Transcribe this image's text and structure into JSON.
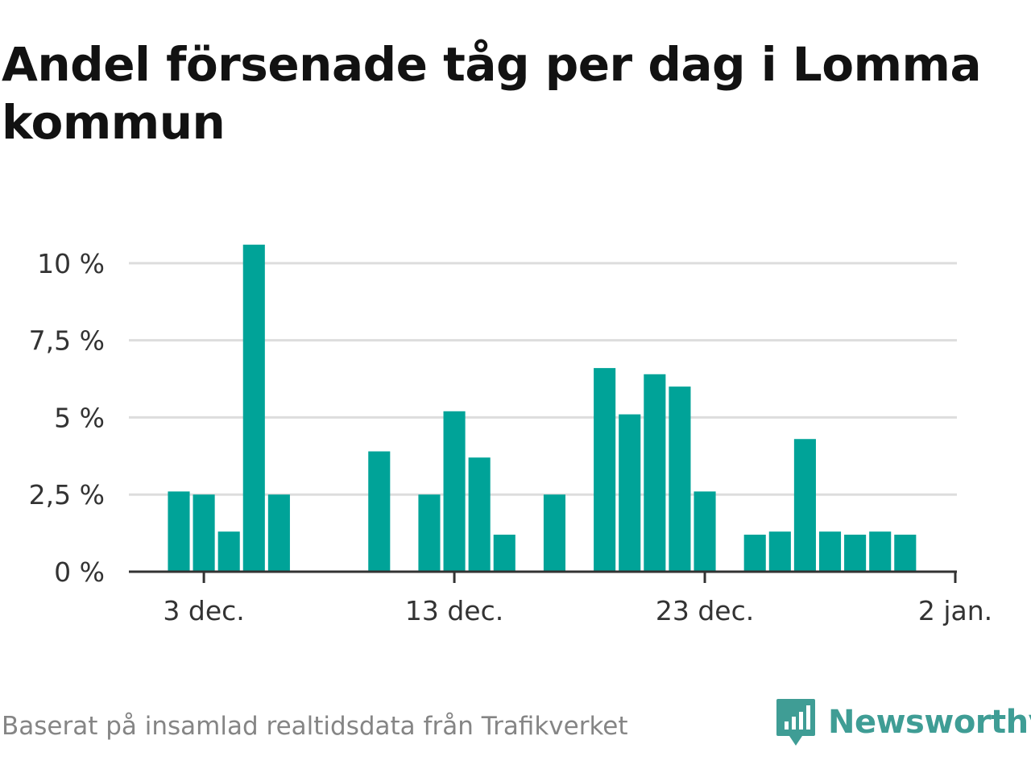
{
  "title": "Andel försenade tåg per dag i Lomma kommun",
  "source": "Baserat på insamlad realtidsdata från Trafikverket",
  "brand": {
    "name": "Newsworthy",
    "icon": "newsworthy-logo-icon",
    "color": "#3f9d95"
  },
  "colors": {
    "bar": "#00a398",
    "grid": "#dddddd",
    "axis": "#333333"
  },
  "chart_data": {
    "type": "bar",
    "title": "Andel försenade tåg per dag i Lomma kommun",
    "xlabel": "",
    "ylabel": "",
    "x_tick_labels": [
      "3 dec.",
      "13 dec.",
      "23 dec.",
      "2 jan."
    ],
    "y_tick_labels": [
      "0 %",
      "2,5 %",
      "5 %",
      "7,5 %",
      "10 %"
    ],
    "y_ticks": [
      0,
      2.5,
      5,
      7.5,
      10
    ],
    "ylim": [
      0,
      10.7
    ],
    "unit": "%",
    "grid": true,
    "categories": [
      "2021-12-02",
      "2021-12-03",
      "2021-12-04",
      "2021-12-05",
      "2021-12-06",
      "2021-12-07",
      "2021-12-08",
      "2021-12-09",
      "2021-12-10",
      "2021-12-11",
      "2021-12-12",
      "2021-12-13",
      "2021-12-14",
      "2021-12-15",
      "2021-12-16",
      "2021-12-17",
      "2021-12-18",
      "2021-12-19",
      "2021-12-20",
      "2021-12-21",
      "2021-12-22",
      "2021-12-23",
      "2021-12-24",
      "2021-12-25",
      "2021-12-26",
      "2021-12-27",
      "2021-12-28",
      "2021-12-29",
      "2021-12-30",
      "2021-12-31",
      "2022-01-01",
      "2022-01-02"
    ],
    "values": [
      2.6,
      2.5,
      1.3,
      10.6,
      2.5,
      0,
      0,
      0,
      3.9,
      0,
      2.5,
      5.2,
      3.7,
      1.2,
      0,
      2.5,
      0,
      6.6,
      5.1,
      6.4,
      6.0,
      2.6,
      0,
      1.2,
      1.3,
      4.3,
      1.3,
      1.2,
      1.3,
      1.2,
      0,
      0
    ]
  }
}
